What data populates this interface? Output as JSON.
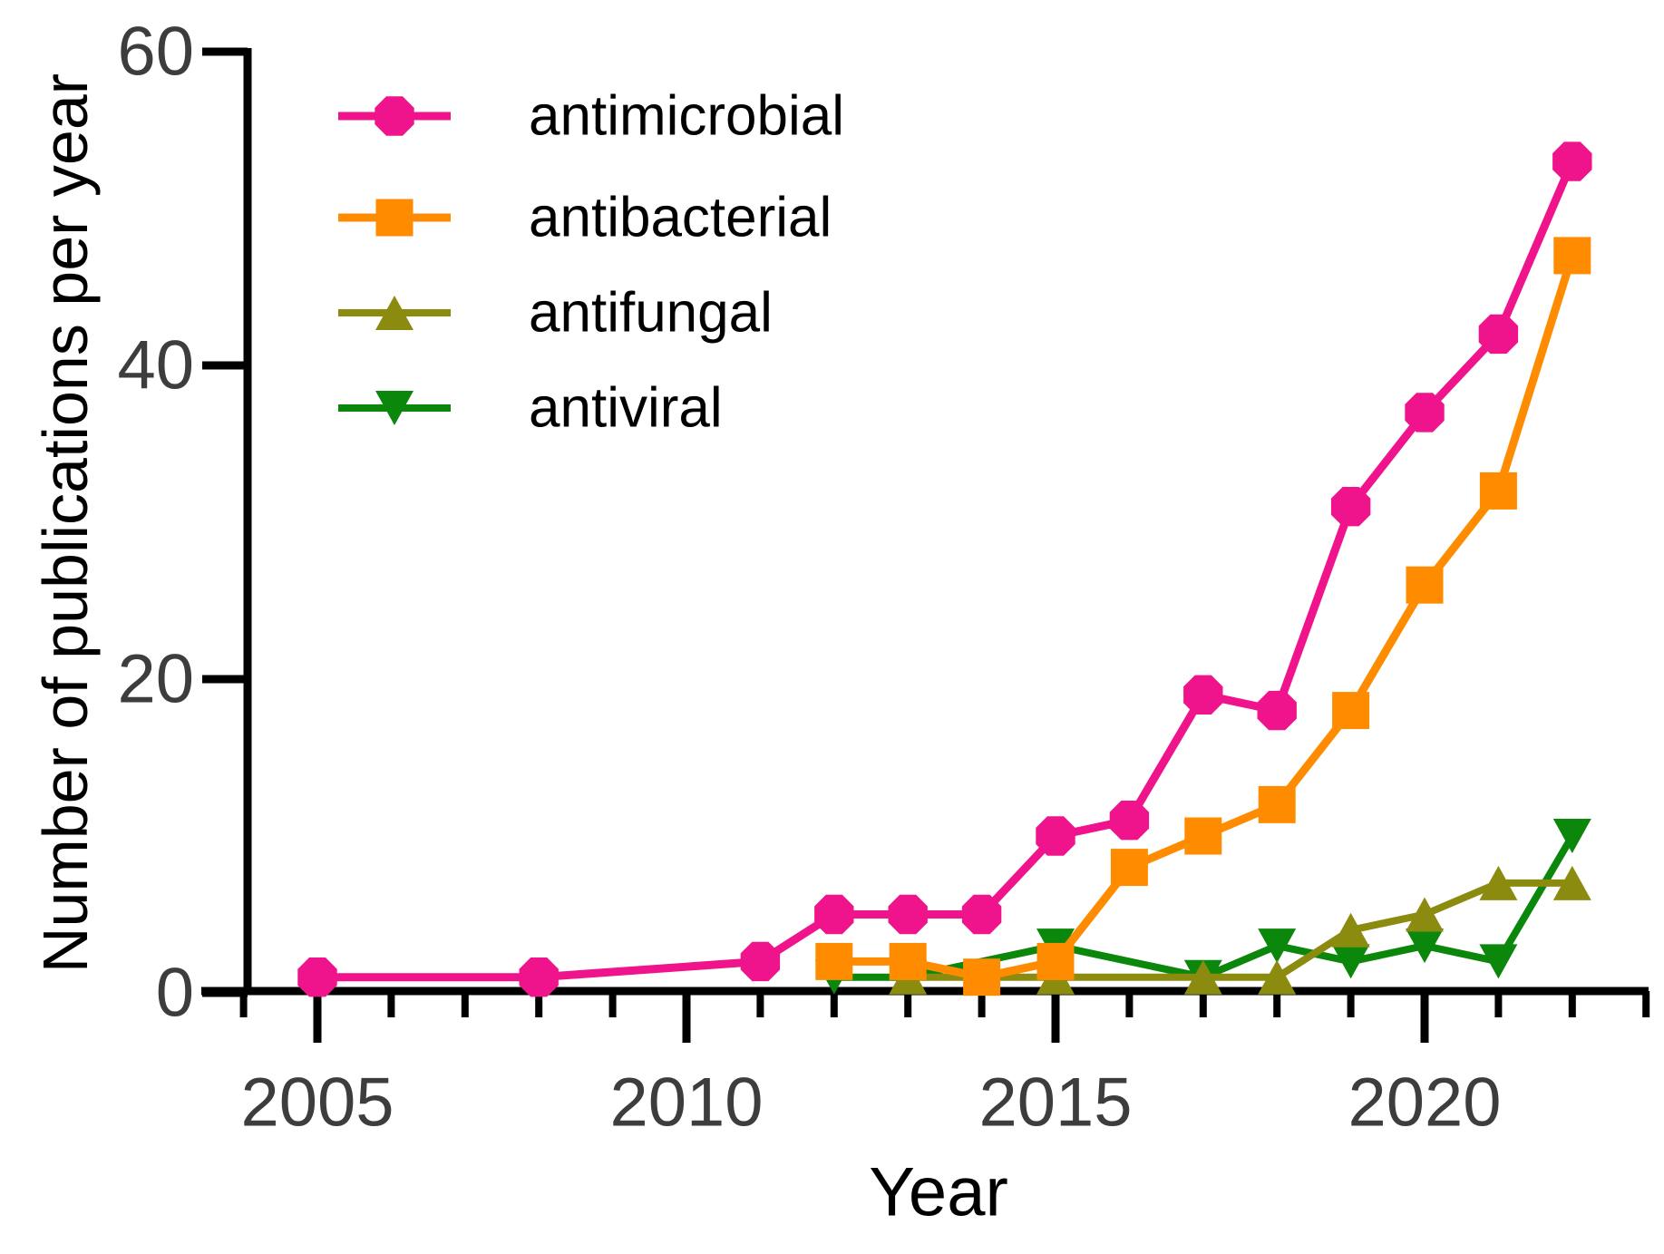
{
  "figure": {
    "background": "#FFFFFF"
  },
  "chart_data": {
    "type": "line",
    "title": "",
    "xlabel": "Year",
    "ylabel": "Number of publications per year",
    "xlim": [
      2003.7,
      2023.1
    ],
    "ylim": [
      0,
      60
    ],
    "grid": false,
    "legend_position": "top-left-inside",
    "axis_color": "#000000",
    "tick_label_color": "#3D3D3D",
    "y_ticks": [
      0,
      20,
      40,
      60
    ],
    "x_major_ticks": [
      2005,
      2010,
      2015,
      2020
    ],
    "x_minor_tick_years": [
      2004,
      2005,
      2006,
      2007,
      2008,
      2009,
      2010,
      2011,
      2012,
      2013,
      2014,
      2015,
      2016,
      2017,
      2018,
      2019,
      2020,
      2021,
      2022,
      2023
    ],
    "series": [
      {
        "name": "antimicrobial",
        "color": "#F0148C",
        "marker": "octagon",
        "points": [
          [
            2005,
            1
          ],
          [
            2008,
            1
          ],
          [
            2011,
            2
          ],
          [
            2012,
            5
          ],
          [
            2013,
            5
          ],
          [
            2014,
            5
          ],
          [
            2015,
            10
          ],
          [
            2016,
            11
          ],
          [
            2017,
            19
          ],
          [
            2018,
            18
          ],
          [
            2019,
            31
          ],
          [
            2020,
            37
          ],
          [
            2021,
            42
          ],
          [
            2022,
            53
          ]
        ]
      },
      {
        "name": "antibacterial",
        "color": "#FF8C00",
        "marker": "square",
        "points": [
          [
            2012,
            2
          ],
          [
            2013,
            2
          ],
          [
            2014,
            1
          ],
          [
            2015,
            2
          ],
          [
            2016,
            8
          ],
          [
            2017,
            10
          ],
          [
            2018,
            12
          ],
          [
            2019,
            18
          ],
          [
            2020,
            26
          ],
          [
            2021,
            32
          ],
          [
            2022,
            47
          ]
        ]
      },
      {
        "name": "antifungal",
        "color": "#8B8B10",
        "marker": "triangle-up",
        "points": [
          [
            2013,
            1
          ],
          [
            2015,
            1
          ],
          [
            2017,
            1
          ],
          [
            2018,
            1
          ],
          [
            2019,
            4
          ],
          [
            2020,
            5
          ],
          [
            2021,
            7
          ],
          [
            2022,
            7
          ]
        ]
      },
      {
        "name": "antiviral",
        "color": "#0B870B",
        "marker": "triangle-down",
        "points": [
          [
            2012,
            1
          ],
          [
            2013,
            1
          ],
          [
            2015,
            3
          ],
          [
            2017,
            1
          ],
          [
            2018,
            3
          ],
          [
            2019,
            2
          ],
          [
            2020,
            3
          ],
          [
            2021,
            2
          ],
          [
            2022,
            10
          ]
        ]
      }
    ]
  }
}
